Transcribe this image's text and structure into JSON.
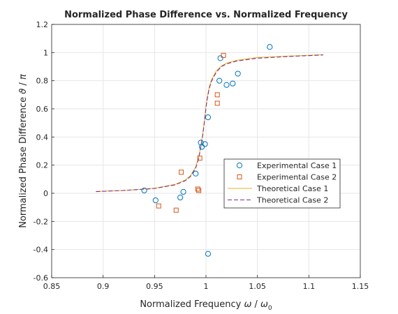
{
  "chart_data": {
    "type": "scatter",
    "title": "Normalized Phase Difference vs. Normalized Frequency",
    "xlabel": {
      "main": "Normalized Frequency ",
      "sym1": "ω",
      "mid": " / ",
      "sym2": "ω",
      "sub": "0"
    },
    "ylabel": {
      "main": "Normalized Phase Difference ",
      "sym1": "ϑ",
      "mid": " / ",
      "sym2": "π"
    },
    "xlim": [
      0.85,
      1.15
    ],
    "ylim": [
      -0.6,
      1.2
    ],
    "x_ticks": [
      0.85,
      0.9,
      0.95,
      1,
      1.05,
      1.1,
      1.15
    ],
    "x_tick_labels": [
      "0.85",
      "0.9",
      "0.95",
      "1",
      "1.05",
      "1.1",
      "1.15"
    ],
    "y_ticks": [
      -0.6,
      -0.4,
      -0.2,
      0,
      0.2,
      0.4,
      0.6,
      0.8,
      1,
      1.2
    ],
    "y_tick_labels": [
      "-0.6",
      "-0.4",
      "-0.2",
      "0",
      "0.2",
      "0.4",
      "0.6",
      "0.8",
      "1",
      "1.2"
    ],
    "grid": true,
    "legend_position": "center-right",
    "series": [
      {
        "name": "Experimental Case 1",
        "kind": "markers",
        "marker": "circle",
        "color": "#0072BD",
        "x": [
          0.94,
          0.951,
          0.975,
          0.978,
          0.99,
          0.995,
          0.996,
          0.999,
          1.002,
          1.002,
          1.013,
          1.014,
          1.02,
          1.026,
          1.031,
          1.062
        ],
        "y": [
          0.02,
          -0.05,
          -0.03,
          0.01,
          0.14,
          0.36,
          0.33,
          0.35,
          0.54,
          -0.43,
          0.8,
          0.96,
          0.77,
          0.78,
          0.85,
          1.04
        ]
      },
      {
        "name": "Experimental Case 2",
        "kind": "markers",
        "marker": "square",
        "color": "#D95319",
        "x": [
          0.954,
          0.971,
          0.976,
          0.992,
          0.993,
          0.994,
          1.011,
          1.011,
          1.017
        ],
        "y": [
          -0.09,
          -0.12,
          0.15,
          0.03,
          0.02,
          0.25,
          0.7,
          0.64,
          0.98
        ]
      },
      {
        "name": "Theoretical Case 1",
        "kind": "line",
        "style": "solid",
        "color": "#EDB120",
        "x": [
          0.893,
          0.92,
          0.95,
          0.97,
          0.98,
          0.985,
          0.99,
          0.993,
          0.995,
          0.997,
          0.999,
          1.0,
          1.001,
          1.003,
          1.005,
          1.007,
          1.01,
          1.015,
          1.02,
          1.03,
          1.05,
          1.08,
          1.114
        ],
        "y": [
          0.013,
          0.02,
          0.036,
          0.063,
          0.095,
          0.126,
          0.187,
          0.26,
          0.34,
          0.43,
          0.55,
          0.62,
          0.67,
          0.75,
          0.8,
          0.83,
          0.87,
          0.905,
          0.925,
          0.945,
          0.965,
          0.975,
          0.985
        ]
      },
      {
        "name": "Theoretical Case 2",
        "kind": "line",
        "style": "dashed",
        "color": "#7E2F8E",
        "x": [
          0.893,
          0.92,
          0.95,
          0.97,
          0.98,
          0.985,
          0.99,
          0.993,
          0.995,
          0.997,
          0.999,
          1.0,
          1.001,
          1.003,
          1.005,
          1.007,
          1.01,
          1.015,
          1.02,
          1.03,
          1.05,
          1.08,
          1.114
        ],
        "y": [
          0.012,
          0.02,
          0.034,
          0.06,
          0.09,
          0.12,
          0.18,
          0.25,
          0.33,
          0.42,
          0.54,
          0.61,
          0.66,
          0.74,
          0.79,
          0.82,
          0.86,
          0.9,
          0.92,
          0.94,
          0.96,
          0.972,
          0.983
        ]
      }
    ]
  }
}
